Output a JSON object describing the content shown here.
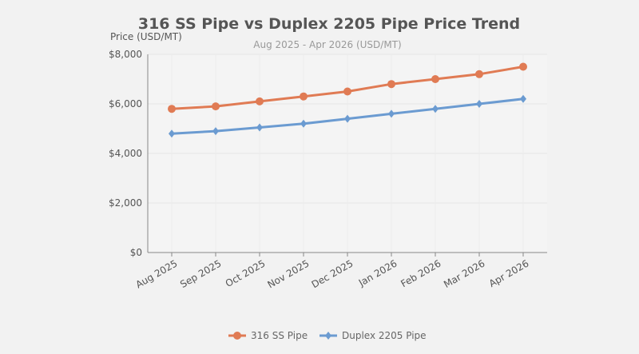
{
  "chart_data": {
    "type": "line",
    "title": "316 SS Pipe vs Duplex 2205 Pipe Price Trend",
    "subtitle": "Aug 2025 - Apr 2026 (USD/MT)",
    "xlabel": "",
    "ylabel": "Price (USD/MT)",
    "ylim": [
      0,
      8000
    ],
    "yticks": [
      "$0",
      "$2,000",
      "$4,000",
      "$6,000",
      "$8,000"
    ],
    "ytick_values": [
      0,
      2000,
      4000,
      6000,
      8000
    ],
    "grid": true,
    "legend": "bottom",
    "categories": [
      "Aug 2025",
      "Sep 2025",
      "Oct 2025",
      "Nov 2025",
      "Dec 2025",
      "Jan 2026",
      "Feb 2026",
      "Mar 2026",
      "Apr 2026"
    ],
    "series": [
      {
        "name": "316 SS Pipe",
        "color": "#e07b54",
        "marker": "circle",
        "values": [
          5800,
          5900,
          6100,
          6300,
          6500,
          6800,
          7000,
          7200,
          7500
        ]
      },
      {
        "name": "Duplex 2205 Pipe",
        "color": "#6b9bd1",
        "marker": "diamond",
        "values": [
          4800,
          4900,
          5050,
          5200,
          5400,
          5600,
          5800,
          6000,
          6200
        ]
      }
    ]
  }
}
